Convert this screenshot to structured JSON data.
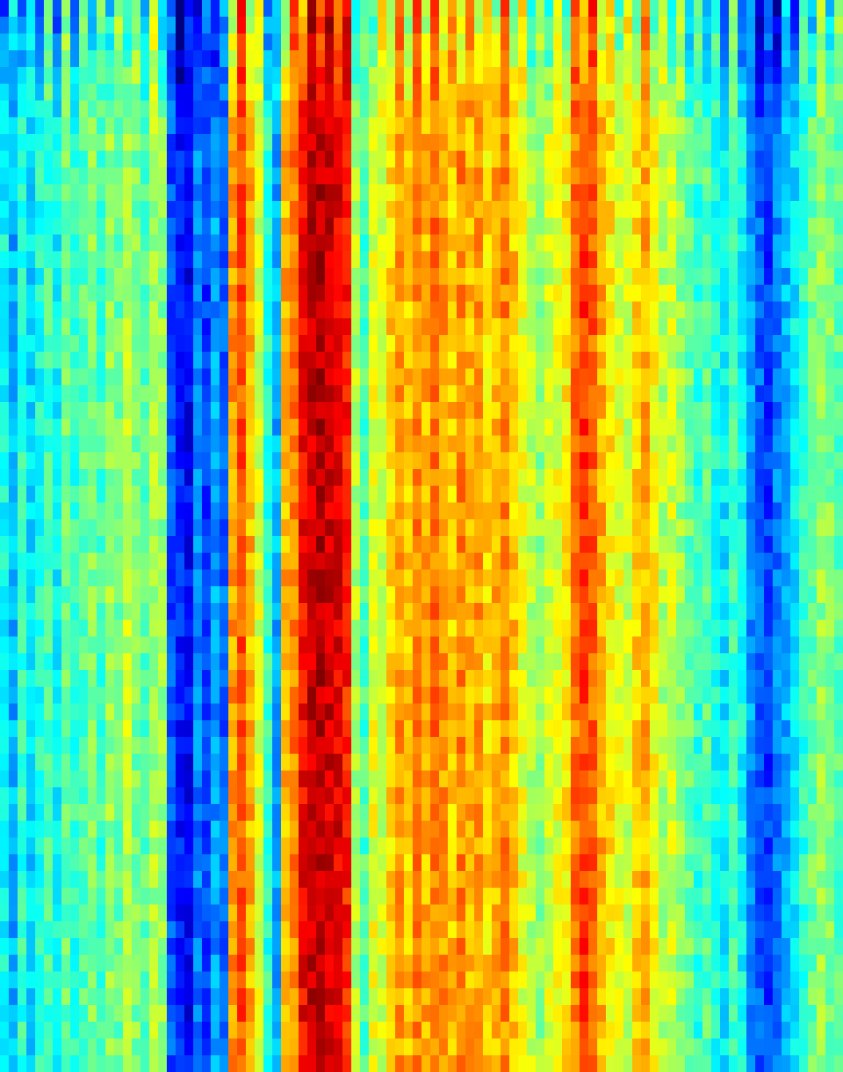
{
  "chart_data": {
    "type": "heatmap",
    "colormap": "jet",
    "colors": {
      "low": "#0000ff",
      "mid_low": "#00bfff",
      "mid": "#40e0c0",
      "mid_high": "#c0f040",
      "high_yellow": "#ffe000",
      "high": "#ff6000",
      "max": "#c00000"
    },
    "title": "",
    "xlabel": "",
    "ylabel": "",
    "value_range": [
      0,
      1
    ],
    "columns": 96,
    "rows": 64,
    "column_profile": [
      0.38,
      0.3,
      0.42,
      0.34,
      0.4,
      0.44,
      0.38,
      0.48,
      0.42,
      0.46,
      0.5,
      0.44,
      0.52,
      0.48,
      0.56,
      0.5,
      0.46,
      0.54,
      0.52,
      0.2,
      0.15,
      0.12,
      0.25,
      0.18,
      0.28,
      0.22,
      0.72,
      0.8,
      0.7,
      0.58,
      0.42,
      0.3,
      0.7,
      0.75,
      0.88,
      0.93,
      0.95,
      0.92,
      0.9,
      0.85,
      0.55,
      0.45,
      0.6,
      0.58,
      0.66,
      0.72,
      0.68,
      0.74,
      0.7,
      0.76,
      0.72,
      0.68,
      0.74,
      0.7,
      0.72,
      0.66,
      0.7,
      0.74,
      0.68,
      0.6,
      0.56,
      0.52,
      0.58,
      0.6,
      0.64,
      0.76,
      0.82,
      0.78,
      0.7,
      0.64,
      0.6,
      0.58,
      0.66,
      0.7,
      0.62,
      0.55,
      0.58,
      0.52,
      0.48,
      0.42,
      0.46,
      0.4,
      0.36,
      0.44,
      0.38,
      0.28,
      0.22,
      0.18,
      0.25,
      0.3,
      0.36,
      0.42,
      0.48,
      0.52,
      0.5,
      0.46
    ],
    "row_profile_top_streaks": 0.12,
    "grid": false,
    "legend": "none"
  }
}
